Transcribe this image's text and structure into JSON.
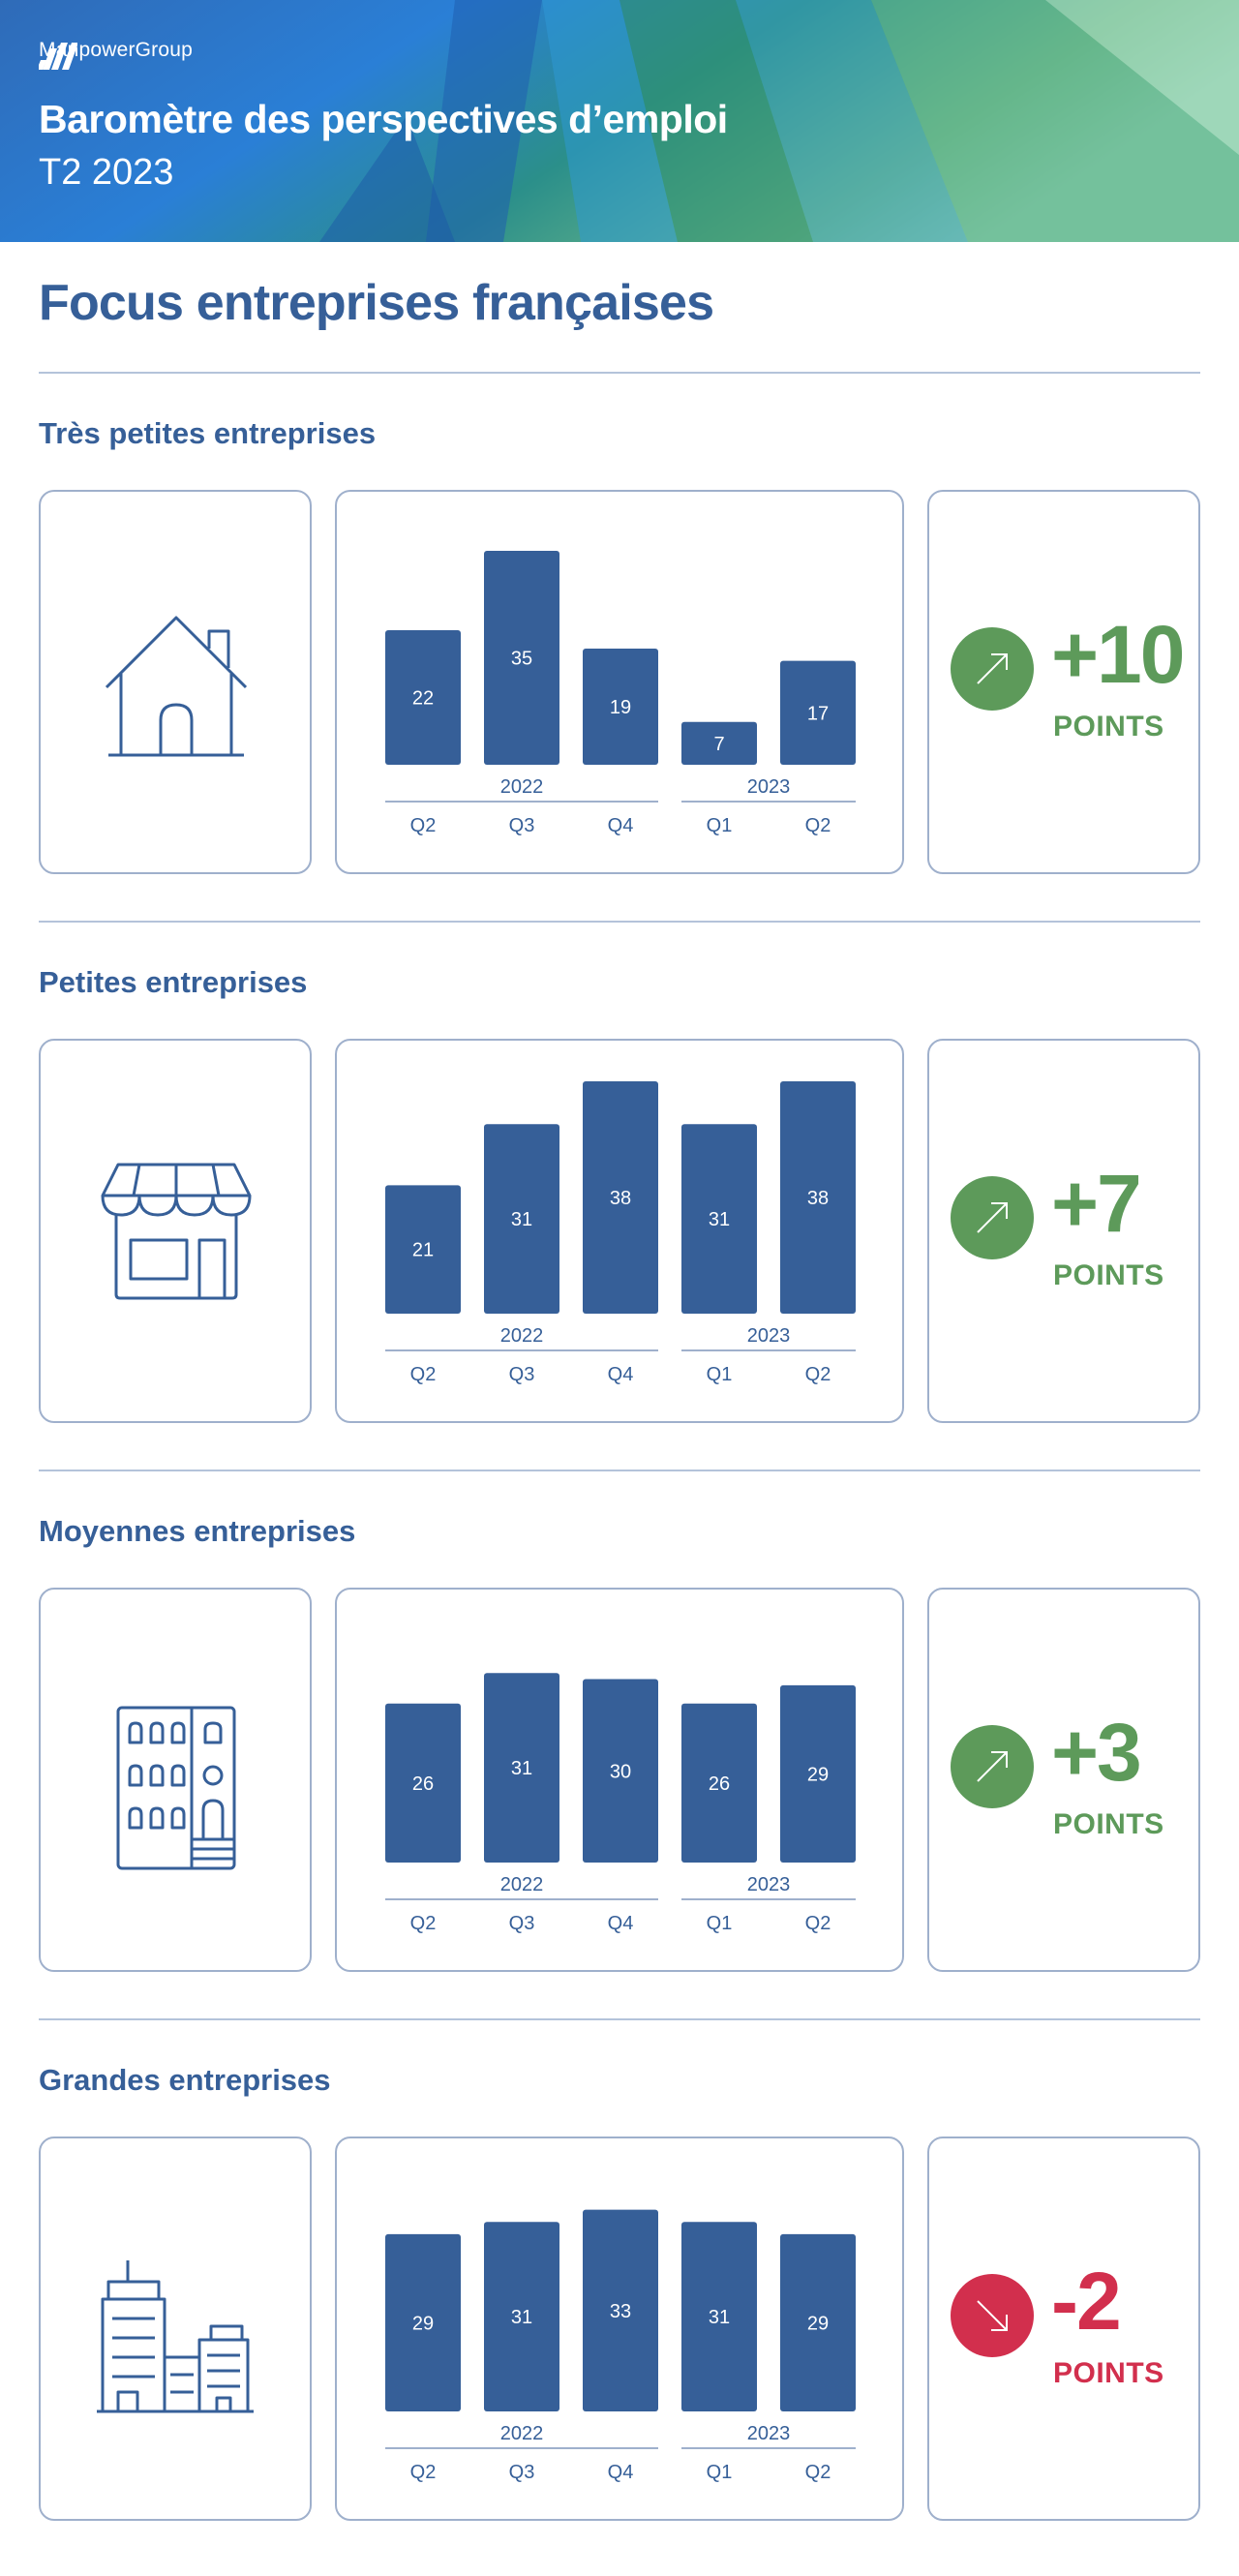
{
  "header": {
    "brand": "ManpowerGroup",
    "title": "Baromètre des perspectives d’emploi",
    "subtitle": "T2 2023"
  },
  "page_title": "Focus entreprises françaises",
  "colors": {
    "bar": "#365f98",
    "positive": "#5d9a5a",
    "negative": "#d22f4d",
    "text_blue": "#365f98",
    "border": "#9fb0cc"
  },
  "sections": [
    {
      "title": "Très petites entreprises",
      "icon": "house-icon",
      "change": {
        "value": "+10",
        "unit": "POINTS",
        "direction": "up"
      }
    },
    {
      "title": "Petites entreprises",
      "icon": "shop-icon",
      "change": {
        "value": "+7",
        "unit": "POINTS",
        "direction": "up"
      }
    },
    {
      "title": "Moyennes entreprises",
      "icon": "building-icon",
      "change": {
        "value": "+3",
        "unit": "POINTS",
        "direction": "up"
      }
    },
    {
      "title": "Grandes entreprises",
      "icon": "office-buildings-icon",
      "change": {
        "value": "-2",
        "unit": "POINTS",
        "direction": "down"
      }
    }
  ],
  "chart_data": [
    {
      "type": "bar",
      "categories": [
        "Q2",
        "Q3",
        "Q4",
        "Q1",
        "Q2"
      ],
      "years": [
        {
          "label": "2022",
          "span": 3
        },
        {
          "label": "2023",
          "span": 2
        }
      ],
      "values": [
        22,
        35,
        19,
        7,
        17
      ],
      "ylim": [
        0,
        38
      ]
    },
    {
      "type": "bar",
      "categories": [
        "Q2",
        "Q3",
        "Q4",
        "Q1",
        "Q2"
      ],
      "years": [
        {
          "label": "2022",
          "span": 3
        },
        {
          "label": "2023",
          "span": 2
        }
      ],
      "values": [
        21,
        31,
        38,
        31,
        38
      ],
      "ylim": [
        0,
        38
      ]
    },
    {
      "type": "bar",
      "categories": [
        "Q2",
        "Q3",
        "Q4",
        "Q1",
        "Q2"
      ],
      "years": [
        {
          "label": "2022",
          "span": 3
        },
        {
          "label": "2023",
          "span": 2
        }
      ],
      "values": [
        26,
        31,
        30,
        26,
        29
      ],
      "ylim": [
        0,
        38
      ]
    },
    {
      "type": "bar",
      "categories": [
        "Q2",
        "Q3",
        "Q4",
        "Q1",
        "Q2"
      ],
      "years": [
        {
          "label": "2022",
          "span": 3
        },
        {
          "label": "2023",
          "span": 2
        }
      ],
      "values": [
        29,
        31,
        33,
        31,
        29
      ],
      "ylim": [
        0,
        38
      ]
    }
  ]
}
